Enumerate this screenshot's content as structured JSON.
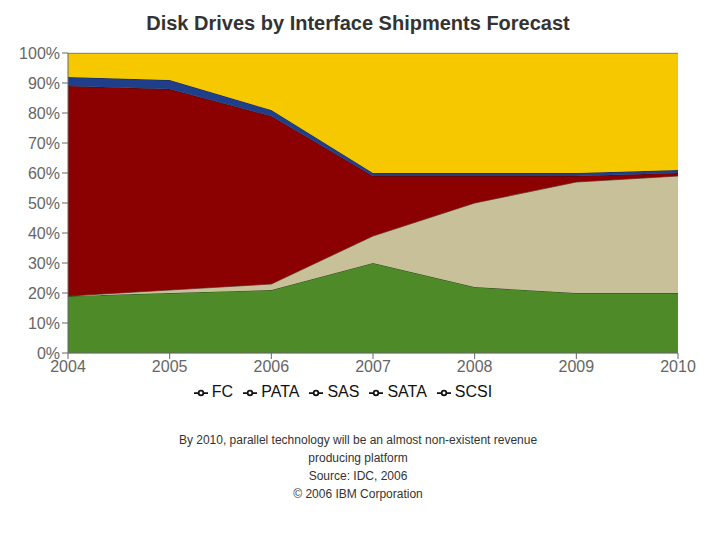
{
  "chart_data": {
    "type": "area",
    "title": "Disk Drives by Interface Shipments Forecast",
    "x": [
      2004,
      2005,
      2006,
      2007,
      2008,
      2009,
      2010
    ],
    "series": [
      {
        "name": "FC",
        "color": "#4e8a28",
        "values": [
          19,
          20,
          21,
          30,
          22,
          20,
          20
        ]
      },
      {
        "name": "SAS",
        "color": "#c8c098",
        "values": [
          0,
          1,
          2,
          9,
          28,
          37,
          39
        ]
      },
      {
        "name": "SCSI",
        "color": "#8b0000",
        "values": [
          70,
          67,
          56,
          20,
          9,
          2,
          1
        ]
      },
      {
        "name": "PATA",
        "color": "#1f3f8a",
        "values": [
          3,
          3,
          2,
          1,
          1,
          1,
          1
        ]
      },
      {
        "name": "SATA",
        "color": "#f5c800",
        "values": [
          8,
          9,
          19,
          40,
          40,
          40,
          39
        ]
      }
    ],
    "stacked": true,
    "xlim": [
      2004,
      2010
    ],
    "xticks": [
      2004,
      2005,
      2006,
      2007,
      2008,
      2009,
      2010
    ],
    "ylim": [
      0,
      100
    ],
    "yticks": [
      {
        "value": 0,
        "label": "0%"
      },
      {
        "value": 10,
        "label": "10%"
      },
      {
        "value": 20,
        "label": "20%"
      },
      {
        "value": 30,
        "label": "30%"
      },
      {
        "value": 40,
        "label": "40%"
      },
      {
        "value": 50,
        "label": "50%"
      },
      {
        "value": 60,
        "label": "60%"
      },
      {
        "value": 70,
        "label": "70%"
      },
      {
        "value": 80,
        "label": "80%"
      },
      {
        "value": 90,
        "label": "90%"
      },
      {
        "value": 100,
        "label": "100%"
      }
    ],
    "grid": true,
    "legend": "bottom",
    "annotations": [
      "By 2010, parallel technology will be an almost non-existent revenue",
      "producing platform",
      "Source: IDC, 2006",
      "© 2006 IBM Corporation"
    ]
  }
}
